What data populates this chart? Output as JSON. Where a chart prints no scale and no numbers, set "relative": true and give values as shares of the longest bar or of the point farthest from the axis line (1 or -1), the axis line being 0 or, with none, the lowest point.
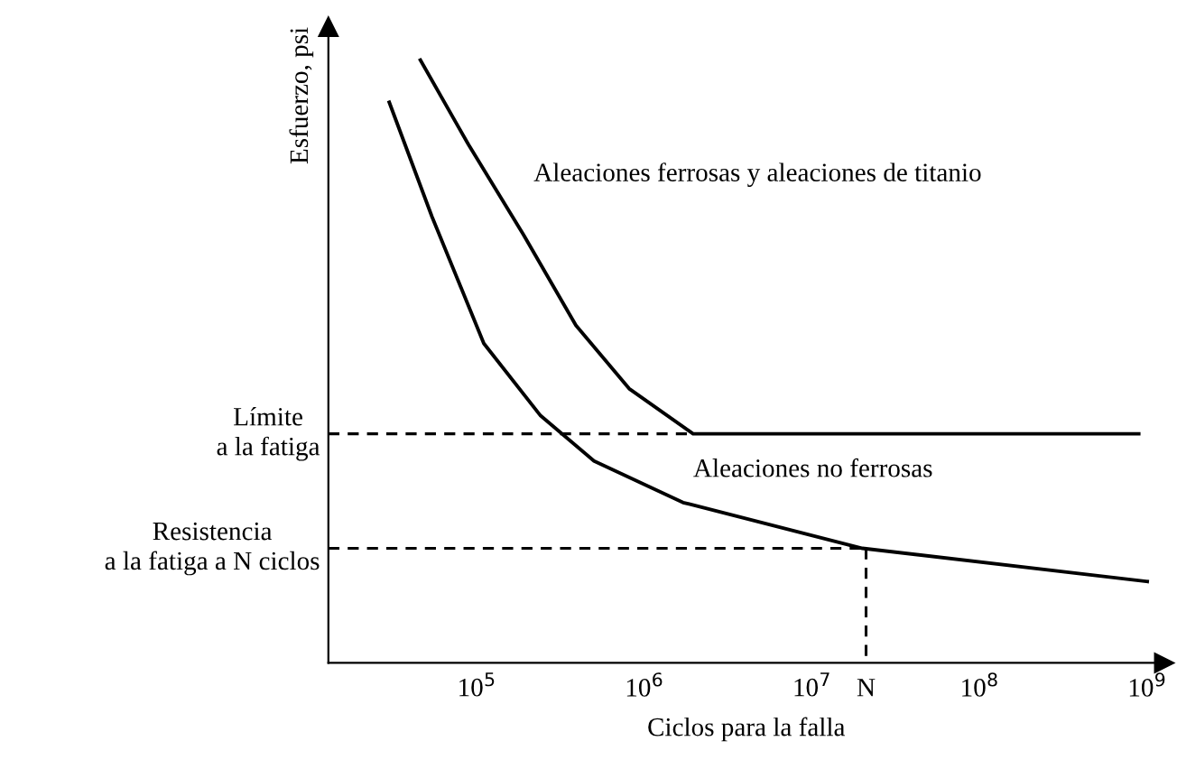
{
  "chart_data": {
    "type": "line",
    "relative": true,
    "log": "x",
    "xlabel": "Ciclos para la falla",
    "ylabel": "Esfuerzo, psi",
    "xlim": [
      13000,
      1260000000
    ],
    "xticks": [
      {
        "value": 100000,
        "label": "10$^{5}$"
      },
      {
        "value": 1000000,
        "label": "10$^{6}$"
      },
      {
        "value": 10000000,
        "label": "10$^{7}$"
      },
      {
        "value": 21000000,
        "label": "N"
      },
      {
        "value": 100000000,
        "label": "10$^{8}$"
      },
      {
        "value": 1000000000,
        "label": "10$^{9}$"
      }
    ],
    "tick_labels": "x",
    "grid": false,
    "legend": false,
    "marker": "none",
    "series": [
      {
        "name": "Aleaciones ferrosas y aleaciones de titanio",
        "color": "#000000",
        "line_style": "solid",
        "x": [
          46000,
          89000,
          190000,
          390000,
          810000,
          1950000,
          890000000
        ],
        "values": [
          1,
          0.86,
          0.71,
          0.56,
          0.455,
          0.38,
          0.38
        ]
      },
      {
        "name": "Aleaciones no ferrosas",
        "color": "#000000",
        "line_style": "solid",
        "x": [
          30000,
          54000,
          110000,
          240000,
          500000,
          1700000,
          20000000,
          1000000000
        ],
        "values": [
          0.93,
          0.74,
          0.53,
          0.41,
          0.335,
          0.266,
          0.19,
          0.135
        ]
      },
      {
        "color": "#000000",
        "line_style": "dashed",
        "x": [
          13000,
          1950000
        ],
        "values": [
          0.38,
          0.38
        ]
      },
      {
        "color": "#000000",
        "line_style": "dashed",
        "x": [
          13000,
          21000000
        ],
        "values": [
          0.19,
          0.19
        ]
      },
      {
        "color": "#000000",
        "line_style": "dashed",
        "x": [
          21000000,
          21000000
        ],
        "values": [
          0.19,
          0
        ]
      }
    ],
    "annotations": [
      "Límite\na la fatiga",
      "Resistencia\na la fatiga a N ciclos"
    ]
  }
}
